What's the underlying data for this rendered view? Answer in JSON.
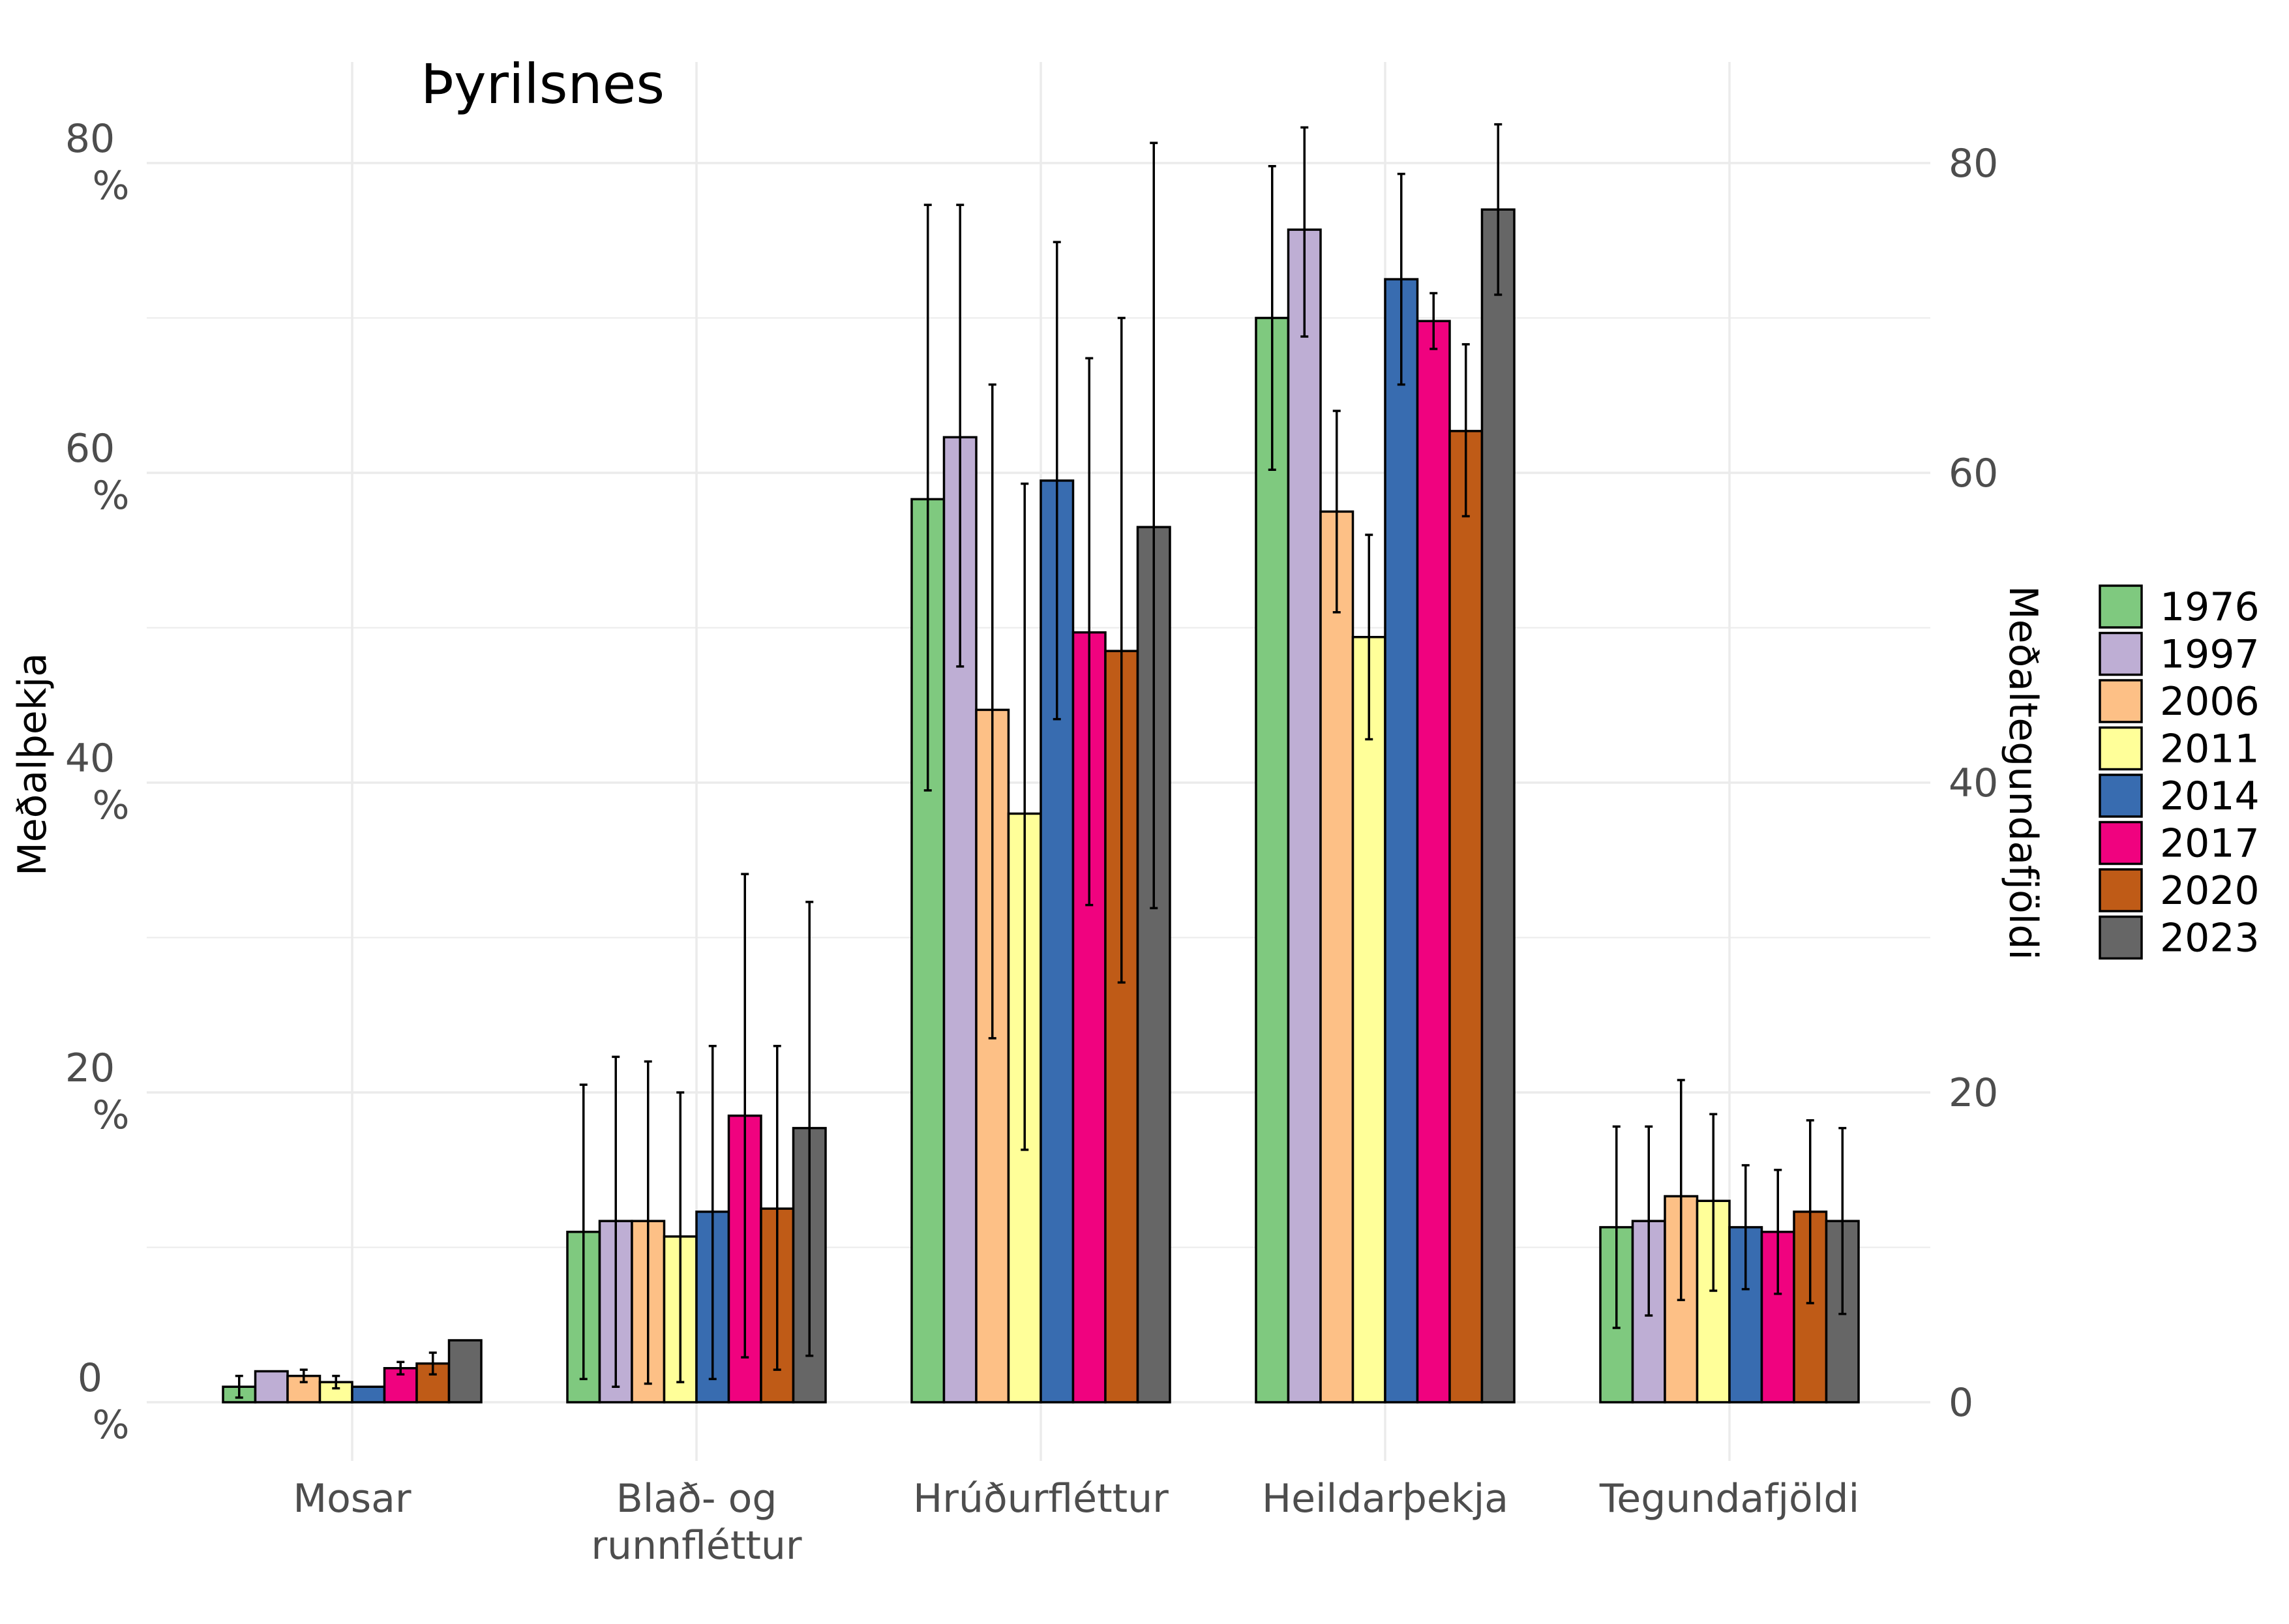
{
  "chart_data": {
    "type": "bar",
    "title": "Þyrilsnes",
    "ylabel": "Meðalþekja",
    "y2label": "Meðaltegundafjöldi",
    "categories": [
      [
        "Mosar"
      ],
      [
        "Blað- og",
        "runnfléttur"
      ],
      [
        "Hrúðurfléttur"
      ],
      [
        "Heildarþekja"
      ],
      [
        "Tegundafjöldi"
      ]
    ],
    "ylim": [
      -3,
      84
    ],
    "yticks": [
      0,
      20,
      40,
      60,
      80
    ],
    "ytick_labels": [
      [
        "0",
        "%"
      ],
      [
        "20",
        "%"
      ],
      [
        "40",
        "%"
      ],
      [
        "60",
        "%"
      ],
      [
        "80",
        "%"
      ]
    ],
    "y2ticks": [
      0,
      20,
      40,
      60,
      80
    ],
    "y2tick_labels": [
      "0",
      "20",
      "40",
      "60",
      "80"
    ],
    "grid": true,
    "legend_position": "right",
    "series": [
      {
        "name": "1976",
        "color": "#7fc97f",
        "values": [
          1.0,
          11.0,
          58.3,
          70.0,
          11.3
        ],
        "err_low": [
          0.3,
          1.5,
          39.5,
          60.2,
          4.8
        ],
        "err_high": [
          1.7,
          20.5,
          77.3,
          79.8,
          17.8
        ]
      },
      {
        "name": "1997",
        "color": "#beaed4",
        "values": [
          2.0,
          11.7,
          62.3,
          75.7,
          11.7
        ],
        "err_low": [
          2.0,
          1.0,
          47.5,
          68.8,
          5.6
        ],
        "err_high": [
          2.0,
          22.3,
          77.3,
          82.3,
          17.8
        ]
      },
      {
        "name": "2006",
        "color": "#fdc086",
        "values": [
          1.7,
          11.7,
          44.7,
          57.5,
          13.3
        ],
        "err_low": [
          1.3,
          1.2,
          23.5,
          51.0,
          6.6
        ],
        "err_high": [
          2.1,
          22.0,
          65.7,
          64.0,
          20.8
        ]
      },
      {
        "name": "2011",
        "color": "#ffff99",
        "values": [
          1.3,
          10.7,
          38.0,
          49.4,
          13.0
        ],
        "err_low": [
          0.9,
          1.3,
          16.3,
          42.8,
          7.2
        ],
        "err_high": [
          1.7,
          20.0,
          59.3,
          56.0,
          18.6
        ]
      },
      {
        "name": "2014",
        "color": "#386cb0",
        "values": [
          1.0,
          12.3,
          59.5,
          72.5,
          11.3
        ],
        "err_low": [
          1.0,
          1.5,
          44.1,
          65.7,
          7.3
        ],
        "err_high": [
          1.0,
          23.0,
          74.9,
          79.3,
          15.3
        ]
      },
      {
        "name": "2017",
        "color": "#f0027f",
        "values": [
          2.2,
          18.5,
          49.7,
          69.8,
          11.0
        ],
        "err_low": [
          1.8,
          2.9,
          32.1,
          68.0,
          7.0
        ],
        "err_high": [
          2.6,
          34.1,
          67.4,
          71.6,
          15.0
        ]
      },
      {
        "name": "2020",
        "color": "#bf5b17",
        "values": [
          2.5,
          12.5,
          48.5,
          62.7,
          12.3
        ],
        "err_low": [
          1.8,
          2.1,
          27.1,
          57.2,
          6.4
        ],
        "err_high": [
          3.2,
          23.0,
          70.0,
          68.3,
          18.2
        ]
      },
      {
        "name": "2023",
        "color": "#666666",
        "values": [
          4.0,
          17.7,
          56.5,
          77.0,
          11.7
        ],
        "err_low": [
          4.0,
          3.0,
          31.9,
          71.5,
          5.7
        ],
        "err_high": [
          4.0,
          32.3,
          81.3,
          82.5,
          17.7
        ]
      }
    ]
  }
}
